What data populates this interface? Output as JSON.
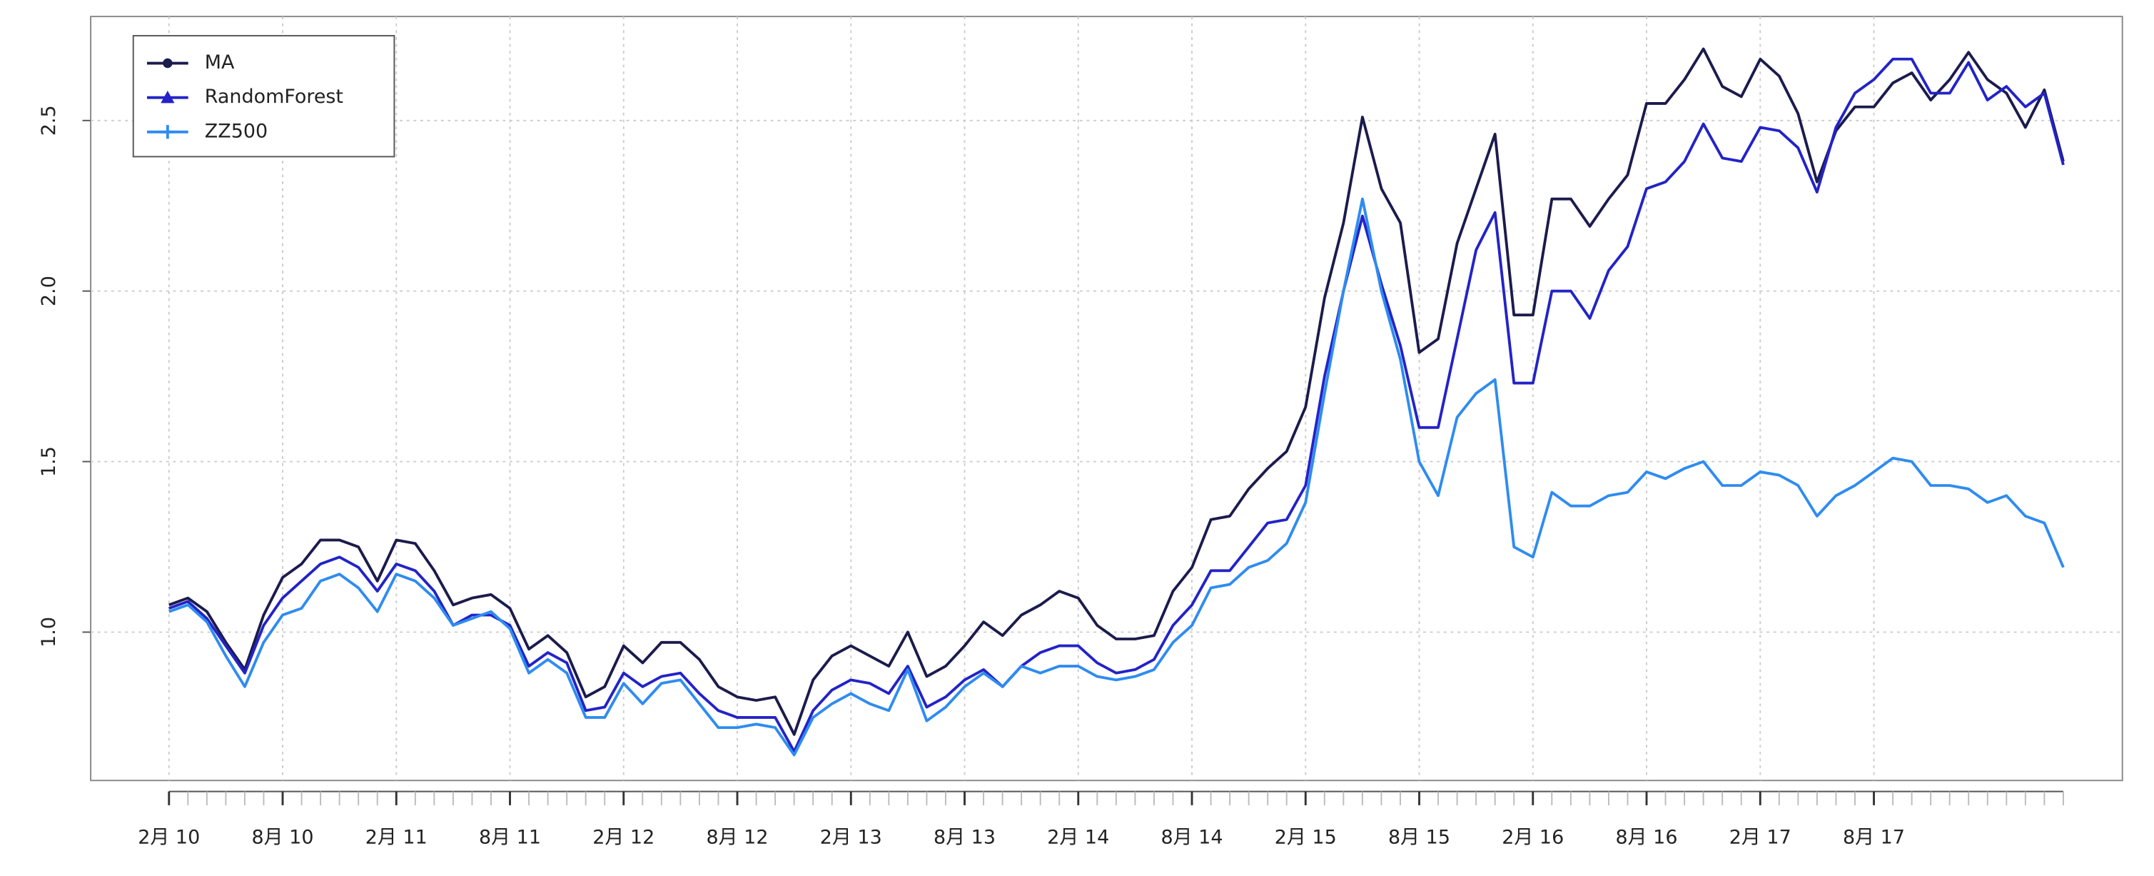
{
  "chart_data": {
    "type": "line",
    "categories": [
      "2月 10",
      null,
      null,
      null,
      null,
      null,
      "8月 10",
      null,
      null,
      null,
      null,
      null,
      "2月 11",
      null,
      null,
      null,
      null,
      null,
      "8月 11",
      null,
      null,
      null,
      null,
      null,
      "2月 12",
      null,
      null,
      null,
      null,
      null,
      "8月 12",
      null,
      null,
      null,
      null,
      null,
      "2月 13",
      null,
      null,
      null,
      null,
      null,
      "8月 13",
      null,
      null,
      null,
      null,
      null,
      "2月 14",
      null,
      null,
      null,
      null,
      null,
      "8月 14",
      null,
      null,
      null,
      null,
      null,
      "2月 15",
      null,
      null,
      null,
      null,
      null,
      "8月 15",
      null,
      null,
      null,
      null,
      null,
      "2月 16",
      null,
      null,
      null,
      null,
      null,
      "8月 16",
      null,
      null,
      null,
      null,
      null,
      "2月 17",
      null,
      null,
      null,
      null,
      null,
      "8月 17",
      null,
      null,
      null,
      null,
      null,
      null,
      null,
      null,
      null,
      null
    ],
    "series": [
      {
        "name": "MA",
        "color": "#1b1b4d",
        "marker": "circle",
        "values": [
          1.08,
          1.1,
          1.06,
          0.97,
          0.89,
          1.05,
          1.16,
          1.2,
          1.27,
          1.27,
          1.25,
          1.15,
          1.27,
          1.26,
          1.18,
          1.08,
          1.1,
          1.11,
          1.07,
          0.95,
          0.99,
          0.94,
          0.81,
          0.84,
          0.96,
          0.91,
          0.97,
          0.97,
          0.92,
          0.84,
          0.81,
          0.8,
          0.81,
          0.7,
          0.86,
          0.93,
          0.96,
          0.93,
          0.9,
          1.0,
          0.87,
          0.9,
          0.96,
          1.03,
          0.99,
          1.05,
          1.08,
          1.12,
          1.1,
          1.02,
          0.98,
          0.98,
          0.99,
          1.12,
          1.19,
          1.33,
          1.34,
          1.42,
          1.48,
          1.53,
          1.66,
          1.98,
          2.2,
          2.51,
          2.3,
          2.2,
          1.82,
          1.86,
          2.14,
          2.3,
          2.46,
          1.93,
          1.93,
          2.27,
          2.27,
          2.19,
          2.27,
          2.34,
          2.55,
          2.55,
          2.62,
          2.71,
          2.6,
          2.57,
          2.68,
          2.63,
          2.52,
          2.32,
          2.47,
          2.54,
          2.54,
          2.61,
          2.64,
          2.56,
          2.62,
          2.7,
          2.62,
          2.58,
          2.48,
          2.59,
          2.38
        ]
      },
      {
        "name": "RandomForest",
        "color": "#2323c8",
        "marker": "triangle",
        "values": [
          1.07,
          1.09,
          1.04,
          0.96,
          0.88,
          1.02,
          1.1,
          1.15,
          1.2,
          1.22,
          1.19,
          1.12,
          1.2,
          1.18,
          1.12,
          1.02,
          1.05,
          1.05,
          1.02,
          0.9,
          0.94,
          0.91,
          0.77,
          0.78,
          0.88,
          0.84,
          0.87,
          0.88,
          0.82,
          0.77,
          0.75,
          0.75,
          0.75,
          0.65,
          0.77,
          0.83,
          0.86,
          0.85,
          0.82,
          0.9,
          0.78,
          0.81,
          0.86,
          0.89,
          0.84,
          0.9,
          0.94,
          0.96,
          0.96,
          0.91,
          0.88,
          0.89,
          0.92,
          1.02,
          1.08,
          1.18,
          1.18,
          1.25,
          1.32,
          1.33,
          1.43,
          1.75,
          2.0,
          2.22,
          2.02,
          1.84,
          1.6,
          1.6,
          1.86,
          2.12,
          2.23,
          1.73,
          1.73,
          2.0,
          2.0,
          1.92,
          2.06,
          2.13,
          2.3,
          2.32,
          2.38,
          2.49,
          2.39,
          2.38,
          2.48,
          2.47,
          2.42,
          2.29,
          2.48,
          2.58,
          2.62,
          2.68,
          2.68,
          2.58,
          2.58,
          2.67,
          2.56,
          2.6,
          2.54,
          2.58,
          2.37
        ]
      },
      {
        "name": "ZZ500",
        "color": "#2e8cf0",
        "marker": "plus",
        "values": [
          1.06,
          1.08,
          1.03,
          0.93,
          0.84,
          0.97,
          1.05,
          1.07,
          1.15,
          1.17,
          1.13,
          1.06,
          1.17,
          1.15,
          1.1,
          1.02,
          1.04,
          1.06,
          1.01,
          0.88,
          0.92,
          0.88,
          0.75,
          0.75,
          0.85,
          0.79,
          0.85,
          0.86,
          0.79,
          0.72,
          0.72,
          0.73,
          0.72,
          0.64,
          0.75,
          0.79,
          0.82,
          0.79,
          0.77,
          0.89,
          0.74,
          0.78,
          0.84,
          0.88,
          0.84,
          0.9,
          0.88,
          0.9,
          0.9,
          0.87,
          0.86,
          0.87,
          0.89,
          0.97,
          1.02,
          1.13,
          1.14,
          1.19,
          1.21,
          1.26,
          1.38,
          1.7,
          2.0,
          2.27,
          2.0,
          1.8,
          1.5,
          1.4,
          1.63,
          1.7,
          1.74,
          1.25,
          1.22,
          1.41,
          1.37,
          1.37,
          1.4,
          1.41,
          1.47,
          1.45,
          1.48,
          1.5,
          1.43,
          1.43,
          1.47,
          1.46,
          1.43,
          1.34,
          1.4,
          1.43,
          1.47,
          1.51,
          1.5,
          1.43,
          1.43,
          1.42,
          1.38,
          1.4,
          1.34,
          1.32,
          1.19
        ]
      }
    ],
    "ylim": [
      0.565,
      2.805
    ],
    "yticks": [
      {
        "value": 1,
        "label": "1.0"
      },
      {
        "value": 1.5,
        "label": "1.5"
      },
      {
        "value": 2,
        "label": "2.0"
      },
      {
        "value": 2.5,
        "label": "2.5"
      }
    ],
    "grid": true,
    "legend": "top-left"
  }
}
